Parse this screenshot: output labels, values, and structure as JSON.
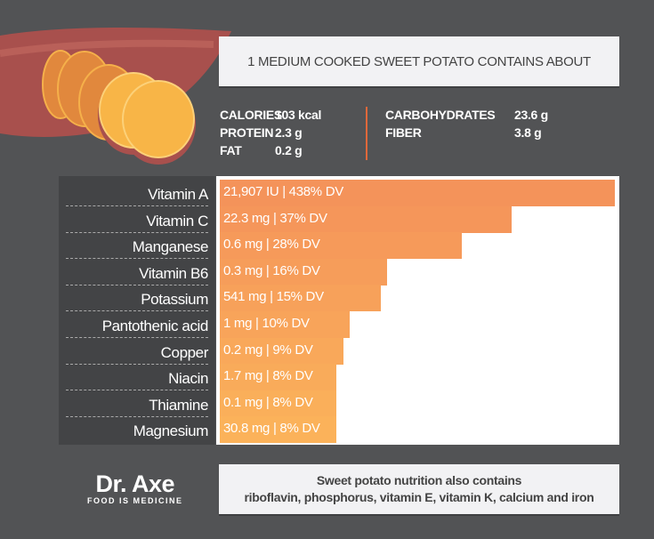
{
  "header": {
    "title": "1 MEDIUM COOKED SWEET POTATO CONTAINS ABOUT"
  },
  "macros": {
    "left": [
      {
        "label": "CALORIES",
        "value": "103 kcal"
      },
      {
        "label": "PROTEIN",
        "value": "2.3 g"
      },
      {
        "label": "FAT",
        "value": "0.2 g"
      }
    ],
    "right": [
      {
        "label": "CARBOHYDRATES",
        "value": "23.6 g"
      },
      {
        "label": "FIBER",
        "value": "3.8 g"
      }
    ]
  },
  "colors": {
    "background": "#525355",
    "label_panel": "#434446",
    "bar_top": "#f4935a",
    "bar_bottom": "#fbb25a",
    "divider": "#e0683a"
  },
  "chart_data": {
    "type": "bar",
    "orientation": "horizontal",
    "categories": [
      "Vitamin A",
      "Vitamin C",
      "Manganese",
      "Vitamin B6",
      "Potassium",
      "Pantothenic acid",
      "Copper",
      "Niacin",
      "Thiamine",
      "Magnesium"
    ],
    "values": [
      438,
      37,
      28,
      16,
      15,
      10,
      9,
      8,
      8,
      8
    ],
    "unit": "% DV",
    "data_labels": [
      "21,907 IU | 438% DV",
      "22.3 mg | 37% DV",
      "0.6 mg | 28% DV",
      "0.3 mg | 16% DV",
      "541 mg | 15% DV",
      "1 mg | 10% DV",
      "0.2 mg | 9% DV",
      "1.7 mg | 8% DV",
      "0.1 mg | 8% DV",
      "30.8 mg | 8% DV"
    ],
    "grid": false
  },
  "footer": {
    "line1": "Sweet potato nutrition also contains",
    "line2": "riboflavin, phosphorus, vitamin E, vitamin K, calcium and iron"
  },
  "logo": {
    "main": "Dr. Axe",
    "sub": "FOOD IS MEDICINE"
  }
}
